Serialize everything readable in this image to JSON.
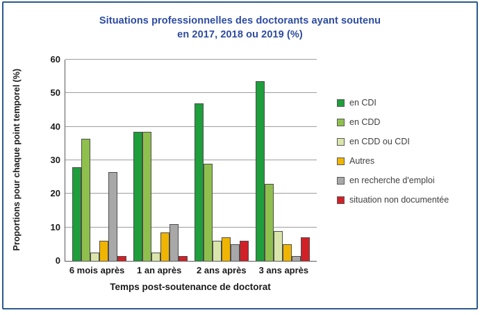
{
  "frame": {
    "border_color": "#2a5a8c"
  },
  "title": {
    "line1": "Situations professionnelles des doctorants ayant soutenu",
    "line2": "en 2017, 2018 ou 2019  (%)",
    "color": "#2c4ba0"
  },
  "chart_data": {
    "type": "bar",
    "title": "Situations professionnelles des doctorants ayant soutenu en 2017, 2018 ou 2019 (%)",
    "categories": [
      "6 mois après",
      "1 an après",
      "2 ans après",
      "3 ans après"
    ],
    "series": [
      {
        "name": "en CDI",
        "color": "#1f9e3c",
        "values": [
          28,
          38.5,
          47,
          53.5
        ]
      },
      {
        "name": "en CDD",
        "color": "#8fc04d",
        "values": [
          36.5,
          38.5,
          29,
          23
        ]
      },
      {
        "name": "en CDD ou CDI",
        "color": "#d9e5ab",
        "values": [
          2.5,
          2.5,
          6,
          9
        ]
      },
      {
        "name": "Autres",
        "color": "#f0b500",
        "values": [
          6,
          8.5,
          7,
          5
        ]
      },
      {
        "name": "en recherche d'emploi",
        "color": "#a8a8a8",
        "values": [
          26.5,
          11,
          5,
          1.5
        ]
      },
      {
        "name": "situation non documentée",
        "color": "#d22027",
        "values": [
          1.5,
          1.5,
          6,
          7
        ]
      }
    ],
    "xlabel": "Temps post-soutenance de doctorat",
    "ylabel": "Proportions  pour chaque point temporel (%)",
    "ylim": [
      0,
      60
    ],
    "yticks": [
      0,
      10,
      20,
      30,
      40,
      50,
      60
    ],
    "grid": true,
    "legend_position": "right"
  }
}
